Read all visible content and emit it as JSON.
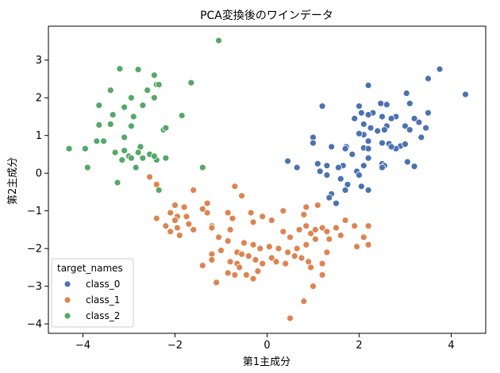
{
  "chart_data": {
    "type": "scatter",
    "title": "PCA変換後のワインデータ",
    "xlabel": "第1主成分",
    "ylabel": "第2主成分",
    "xlim": [
      -4.75,
      4.75
    ],
    "ylim": [
      -4.25,
      3.9
    ],
    "xticks": [
      -4,
      -2,
      0,
      2,
      4
    ],
    "yticks": [
      -4,
      -3,
      -2,
      -1,
      0,
      1,
      2,
      3
    ],
    "grid": false,
    "legend": {
      "title": "target_names",
      "placement": "lower-left"
    },
    "series": [
      {
        "name": "class_0",
        "color": "#4c72b0",
        "points": [
          [
            3.75,
            2.76
          ],
          [
            4.31,
            2.09
          ],
          [
            3.5,
            2.51
          ],
          [
            2.2,
            2.33
          ],
          [
            3.03,
            2.12
          ],
          [
            3.1,
            1.85
          ],
          [
            2.47,
            1.85
          ],
          [
            2.6,
            1.82
          ],
          [
            2.0,
            1.78
          ],
          [
            1.2,
            1.78
          ],
          [
            2.3,
            1.6
          ],
          [
            2.05,
            1.6
          ],
          [
            1.9,
            1.45
          ],
          [
            2.5,
            1.5
          ],
          [
            2.2,
            1.55
          ],
          [
            3.5,
            1.6
          ],
          [
            3.2,
            1.45
          ],
          [
            2.8,
            1.5
          ],
          [
            2.7,
            1.45
          ],
          [
            3.3,
            1.35
          ],
          [
            2.1,
            1.3
          ],
          [
            3.0,
            1.25
          ],
          [
            2.6,
            1.25
          ],
          [
            2.55,
            1.15
          ],
          [
            2.4,
            1.12
          ],
          [
            2.1,
            1.02
          ],
          [
            2.0,
            1.05
          ],
          [
            2.25,
            1.2
          ],
          [
            3.1,
            1.15
          ],
          [
            3.45,
            1.2
          ],
          [
            3.35,
            0.95
          ],
          [
            1.0,
            0.95
          ],
          [
            2.2,
            0.85
          ],
          [
            2.5,
            0.8
          ],
          [
            2.65,
            0.78
          ],
          [
            2.9,
            0.72
          ],
          [
            3.0,
            0.77
          ],
          [
            1.0,
            0.8
          ],
          [
            1.4,
            0.7
          ],
          [
            1.72,
            0.7
          ],
          [
            1.7,
            0.65
          ],
          [
            2.1,
            0.67
          ],
          [
            2.2,
            0.65
          ],
          [
            2.8,
            0.65
          ],
          [
            1.85,
            0.5
          ],
          [
            2.7,
            0.7
          ],
          [
            3.05,
            0.3
          ],
          [
            3.2,
            0.18
          ],
          [
            2.2,
            0.4
          ],
          [
            2.5,
            0.25
          ],
          [
            2.55,
            0.2
          ],
          [
            0.45,
            0.32
          ],
          [
            1.1,
            0.25
          ],
          [
            1.3,
            0.2
          ],
          [
            1.65,
            0.2
          ],
          [
            2.1,
            0.2
          ],
          [
            1.95,
            0.05
          ],
          [
            2.5,
            0.15
          ],
          [
            1.55,
            0.15
          ],
          [
            2.0,
            -0.05
          ],
          [
            1.15,
            0.05
          ],
          [
            1.3,
            -0.05
          ],
          [
            1.6,
            -0.15
          ],
          [
            0.65,
            0.15
          ],
          [
            1.75,
            -0.3
          ],
          [
            2.05,
            -0.35
          ],
          [
            2.2,
            -0.45
          ],
          [
            1.7,
            -0.45
          ],
          [
            1.4,
            -0.55
          ],
          [
            1.35,
            -0.65
          ],
          [
            1.5,
            -0.8
          ]
        ]
      },
      {
        "name": "class_1",
        "color": "#dd8452",
        "points": [
          [
            -2.55,
            -0.1
          ],
          [
            -2.4,
            -0.3
          ],
          [
            -1.6,
            -0.45
          ],
          [
            -0.7,
            -0.35
          ],
          [
            -0.55,
            -0.6
          ],
          [
            -1.3,
            -0.8
          ],
          [
            -2.0,
            -0.85
          ],
          [
            -1.8,
            -0.9
          ],
          [
            -2.4,
            -1.2
          ],
          [
            -2.1,
            -1.05
          ],
          [
            -1.95,
            -1.15
          ],
          [
            -1.75,
            -1.15
          ],
          [
            -1.3,
            -1.05
          ],
          [
            -0.85,
            -1.05
          ],
          [
            -0.75,
            -1.2
          ],
          [
            -0.35,
            -1.05
          ],
          [
            -0.1,
            -1.15
          ],
          [
            0.35,
            -1.0
          ],
          [
            0.8,
            -1.1
          ],
          [
            1.1,
            -0.85
          ],
          [
            0.85,
            -0.9
          ],
          [
            -1.4,
            -0.95
          ],
          [
            -2.0,
            -1.25
          ],
          [
            -1.7,
            -1.35
          ],
          [
            -2.2,
            -1.4
          ],
          [
            -1.95,
            -1.45
          ],
          [
            -1.2,
            -1.4
          ],
          [
            -0.8,
            -1.5
          ],
          [
            -0.3,
            -1.3
          ],
          [
            0.1,
            -1.25
          ],
          [
            0.35,
            -1.55
          ],
          [
            0.5,
            -1.7
          ],
          [
            0.7,
            -1.5
          ],
          [
            0.85,
            -1.4
          ],
          [
            0.95,
            -1.6
          ],
          [
            1.05,
            -1.5
          ],
          [
            1.2,
            -1.45
          ],
          [
            1.3,
            -1.55
          ],
          [
            1.5,
            -1.45
          ],
          [
            1.7,
            -1.25
          ],
          [
            1.9,
            -1.4
          ],
          [
            2.2,
            -1.4
          ],
          [
            2.1,
            -1.7
          ],
          [
            2.2,
            -1.9
          ],
          [
            1.95,
            -1.95
          ],
          [
            1.6,
            -1.65
          ],
          [
            1.35,
            -1.75
          ],
          [
            1.05,
            -1.75
          ],
          [
            0.85,
            -1.9
          ],
          [
            0.65,
            -2.0
          ],
          [
            0.45,
            -2.1
          ],
          [
            0.25,
            -2.0
          ],
          [
            0.05,
            -1.95
          ],
          [
            -0.15,
            -2.0
          ],
          [
            -0.3,
            -1.9
          ],
          [
            -0.5,
            -1.85
          ],
          [
            -0.65,
            -2.1
          ],
          [
            -0.85,
            -1.8
          ],
          [
            -1.05,
            -1.7
          ],
          [
            -1.2,
            -1.45
          ],
          [
            -1.6,
            -1.5
          ],
          [
            -1.9,
            -1.65
          ],
          [
            -2.1,
            -1.55
          ],
          [
            -1.2,
            -2.15
          ],
          [
            -1.0,
            -2.05
          ],
          [
            -0.8,
            -2.35
          ],
          [
            -0.65,
            -2.4
          ],
          [
            -0.55,
            -2.15
          ],
          [
            -0.4,
            -2.2
          ],
          [
            -0.25,
            -2.3
          ],
          [
            -0.1,
            -2.4
          ],
          [
            0.1,
            -2.25
          ],
          [
            0.2,
            -2.35
          ],
          [
            0.4,
            -2.4
          ],
          [
            0.6,
            -2.2
          ],
          [
            0.75,
            -2.25
          ],
          [
            0.9,
            -2.35
          ],
          [
            0.95,
            -2.5
          ],
          [
            1.3,
            -2.1
          ],
          [
            1.2,
            -2.4
          ],
          [
            1.0,
            -3.0
          ],
          [
            1.2,
            -2.7
          ],
          [
            0.8,
            -3.4
          ],
          [
            0.5,
            -3.85
          ],
          [
            -0.3,
            -2.8
          ],
          [
            -0.7,
            -2.7
          ],
          [
            -0.85,
            -2.65
          ],
          [
            -1.2,
            -2.3
          ],
          [
            -1.4,
            -2.45
          ],
          [
            -1.1,
            -2.9
          ],
          [
            -0.6,
            -2.5
          ],
          [
            -0.45,
            -2.7
          ],
          [
            -0.2,
            -2.6
          ]
        ]
      },
      {
        "name": "class_2",
        "color": "#55a868",
        "points": [
          [
            -1.05,
            3.52
          ],
          [
            -3.2,
            2.77
          ],
          [
            -2.8,
            2.75
          ],
          [
            -2.45,
            2.6
          ],
          [
            -2.4,
            2.35
          ],
          [
            -2.6,
            2.2
          ],
          [
            -2.35,
            2.35
          ],
          [
            -3.4,
            2.2
          ],
          [
            -2.95,
            2.0
          ],
          [
            -3.65,
            1.8
          ],
          [
            -3.1,
            1.75
          ],
          [
            -2.7,
            1.8
          ],
          [
            -2.45,
            2.0
          ],
          [
            -1.65,
            2.4
          ],
          [
            -2.9,
            1.5
          ],
          [
            -3.35,
            1.55
          ],
          [
            -3.65,
            1.28
          ],
          [
            -3.4,
            1.3
          ],
          [
            -2.95,
            1.25
          ],
          [
            -2.25,
            1.15
          ],
          [
            -3.1,
            0.95
          ],
          [
            -2.2,
            1.2
          ],
          [
            -3.7,
            0.85
          ],
          [
            -3.55,
            0.85
          ],
          [
            -2.75,
            0.7
          ],
          [
            -3.1,
            0.6
          ],
          [
            -2.8,
            0.55
          ],
          [
            -2.55,
            0.5
          ],
          [
            -3.0,
            0.45
          ],
          [
            -2.95,
            0.4
          ],
          [
            -2.7,
            0.4
          ],
          [
            -2.4,
            0.35
          ],
          [
            -3.3,
            0.55
          ],
          [
            -3.15,
            0.35
          ],
          [
            -2.45,
            0.45
          ],
          [
            -2.2,
            0.4
          ],
          [
            -1.4,
            0.15
          ],
          [
            -4.3,
            0.65
          ],
          [
            -3.95,
            0.65
          ],
          [
            -3.9,
            0.15
          ],
          [
            -3.25,
            -0.25
          ],
          [
            -1.85,
            1.53
          ],
          [
            -2.35,
            -0.45
          ],
          [
            -2.85,
            0.15
          ]
        ]
      }
    ]
  }
}
